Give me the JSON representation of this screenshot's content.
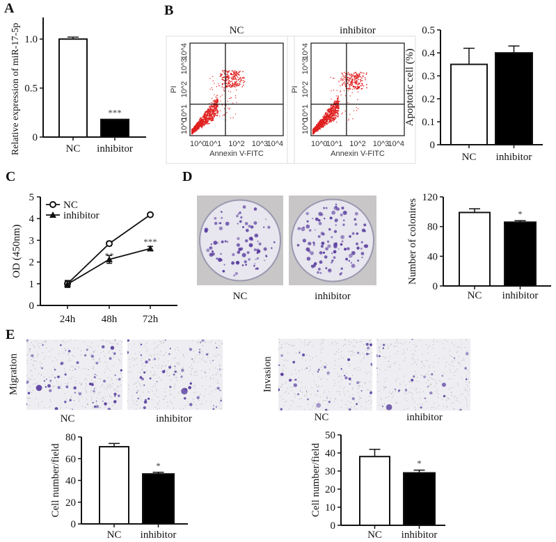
{
  "panels": {
    "a": "A",
    "b": "B",
    "c": "C",
    "d": "D",
    "e": "E"
  },
  "groups": {
    "nc": "NC",
    "inhibitor": "inhibitor"
  },
  "colors": {
    "nc_fill": "#ffffff",
    "inhibitor_fill": "#000000",
    "flow_points": "#e02020",
    "stain": "#5a3fa0"
  },
  "flow": {
    "xlabel": "Annexin V-FITC",
    "ylabel": "PI",
    "ticks": [
      "10^0",
      "10^1",
      "10^2",
      "10^3",
      "10^4"
    ],
    "titles": [
      "NC",
      "inhibitor"
    ]
  },
  "e_side_labels": {
    "migration": "Migration",
    "invasion": "Invasion"
  },
  "chart_data": [
    {
      "id": "A",
      "type": "bar",
      "ylabel": "Relative expression of miR-17-5p",
      "categories": [
        "NC",
        "inhibitor"
      ],
      "values": [
        1.0,
        0.18
      ],
      "errors": [
        0.02,
        0
      ],
      "significance": [
        "",
        "***"
      ],
      "ylim": [
        0,
        1.2
      ],
      "yticks": [
        "0",
        "0.5",
        "1.0"
      ]
    },
    {
      "id": "B",
      "type": "bar",
      "ylabel": "Apoptotic cell (%)",
      "categories": [
        "NC",
        "inhibitor"
      ],
      "values": [
        0.35,
        0.4
      ],
      "errors": [
        0.07,
        0.03
      ],
      "significance": [
        "",
        ""
      ],
      "ylim": [
        0,
        0.5
      ],
      "yticks": [
        "0",
        "0.1",
        "0.2",
        "0.3",
        "0.4",
        "0.5"
      ]
    },
    {
      "id": "C",
      "type": "line",
      "ylabel": "OD (450nm)",
      "x": [
        "24h",
        "48h",
        "72h"
      ],
      "series": [
        {
          "name": "NC",
          "values": [
            1.0,
            2.85,
            4.18
          ],
          "errors": [
            0.15,
            0.1,
            0.05
          ],
          "marker": "open-circle"
        },
        {
          "name": "inhibitor",
          "values": [
            0.98,
            2.12,
            2.62
          ],
          "errors": [
            0.15,
            0.18,
            0.1
          ],
          "marker": "filled-triangle"
        }
      ],
      "significance": [
        "",
        "**",
        "***"
      ],
      "ylim": [
        0,
        5
      ],
      "yticks": [
        "0",
        "1",
        "2",
        "3",
        "4",
        "5"
      ]
    },
    {
      "id": "D",
      "type": "bar",
      "ylabel": "Number of colonires",
      "categories": [
        "NC",
        "inhibitor"
      ],
      "values": [
        99,
        86
      ],
      "errors": [
        5,
        2
      ],
      "significance": [
        "",
        "*"
      ],
      "ylim": [
        0,
        120
      ],
      "yticks": [
        "0",
        "40",
        "80",
        "120"
      ]
    },
    {
      "id": "E-migration",
      "type": "bar",
      "ylabel": "Cell number/field",
      "categories": [
        "NC",
        "inhibitor"
      ],
      "values": [
        71,
        46
      ],
      "errors": [
        3,
        1.5
      ],
      "significance": [
        "",
        "*"
      ],
      "ylim": [
        0,
        80
      ],
      "yticks": [
        "0",
        "20",
        "40",
        "60",
        "80"
      ]
    },
    {
      "id": "E-invasion",
      "type": "bar",
      "ylabel": "Cell number/field",
      "categories": [
        "NC",
        "inhibitor"
      ],
      "values": [
        38,
        29
      ],
      "errors": [
        4,
        1.5
      ],
      "significance": [
        "",
        "*"
      ],
      "ylim": [
        0,
        50
      ],
      "yticks": [
        "0",
        "10",
        "20",
        "30",
        "40",
        "50"
      ]
    }
  ]
}
